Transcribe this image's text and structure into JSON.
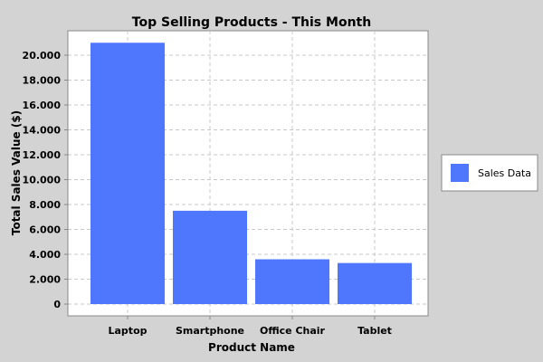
{
  "chart_data": {
    "type": "bar",
    "title": "Top Selling Products - This Month",
    "xlabel": "Product Name",
    "ylabel": "Total Sales Value ($)",
    "categories": [
      "Laptop",
      "Smartphone",
      "Office Chair",
      "Tablet"
    ],
    "series": [
      {
        "name": "Sales Data",
        "values": [
          21000,
          7500,
          3600,
          3300
        ]
      }
    ],
    "ylim": [
      0,
      21000
    ],
    "yticks": [
      0,
      2000,
      4000,
      6000,
      8000,
      10000,
      12000,
      14000,
      16000,
      18000,
      20000
    ],
    "ytick_labels": [
      "0",
      "2.000",
      "4.000",
      "6.000",
      "8.000",
      "10.000",
      "12.000",
      "14.000",
      "16.000",
      "18.000",
      "20.000"
    ],
    "grid": true,
    "legend_position": "right",
    "colors": {
      "bar": "#4f77fe",
      "plot_bg": "#ffffff",
      "page_bg": "#d3d3d3",
      "grid": "#c8c8c8"
    }
  }
}
